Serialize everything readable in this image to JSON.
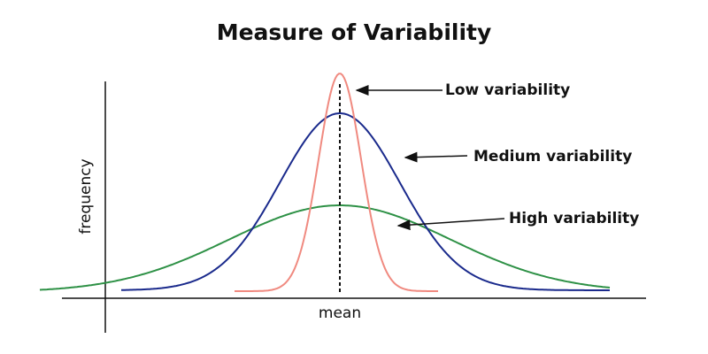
{
  "header": {
    "title": "Measure of Variability"
  },
  "axes": {
    "y_label": "frequency",
    "x_label": "mean"
  },
  "annotations": [
    {
      "label": "Low variability"
    },
    {
      "label": "Medium variability"
    },
    {
      "label": "High variability"
    }
  ]
}
